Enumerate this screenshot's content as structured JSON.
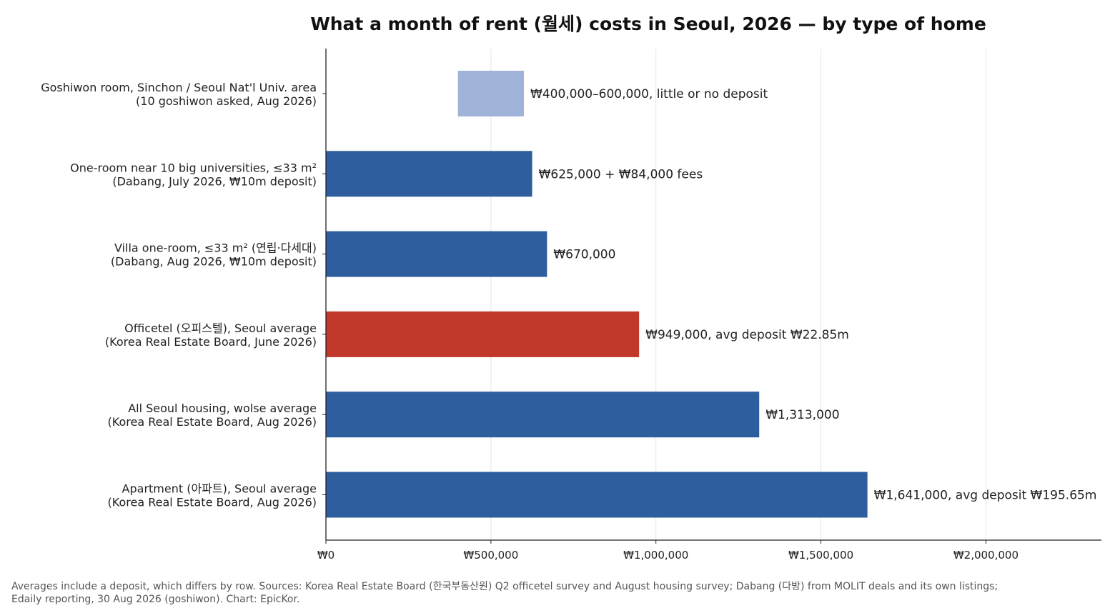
{
  "chart_data": {
    "type": "bar",
    "orientation": "horizontal",
    "title": "What a month of rent (월세) costs in Seoul, 2026 — by type of home",
    "xlabel": "",
    "ylabel": "",
    "xlim": [
      0,
      2350000
    ],
    "grid": "vertical",
    "x_ticks": [
      {
        "value": 0,
        "label": "₩0"
      },
      {
        "value": 500000,
        "label": "₩500,000"
      },
      {
        "value": 1000000,
        "label": "₩1,000,000"
      },
      {
        "value": 1500000,
        "label": "₩1,500,000"
      },
      {
        "value": 2000000,
        "label": "₩2,000,000"
      }
    ],
    "bars": [
      {
        "category_line1": "Goshiwon room, Sinchon / Seoul Nat'l Univ. area",
        "category_line2": "(10 goshiwon asked, Aug 2026)",
        "start": 400000,
        "end": 600000,
        "color": "#a0b3d8",
        "label": "₩400,000–600,000, little or no deposit"
      },
      {
        "category_line1": "One-room near 10 big universities, ≤33 m²",
        "category_line2": "(Dabang, July 2026, ₩10m deposit)",
        "start": 0,
        "end": 625000,
        "color": "#2f5e9e",
        "label": "₩625,000 + ₩84,000 fees"
      },
      {
        "category_line1": "Villa one-room, ≤33 m² (연립·다세대)",
        "category_line2": "(Dabang, Aug 2026, ₩10m deposit)",
        "start": 0,
        "end": 670000,
        "color": "#2f5e9e",
        "label": "₩670,000"
      },
      {
        "category_line1": "Officetel (오피스텔), Seoul average",
        "category_line2": "(Korea Real Estate Board, June 2026)",
        "start": 0,
        "end": 949000,
        "color": "#c0392b",
        "label": "₩949,000, avg deposit ₩22.85m"
      },
      {
        "category_line1": "All Seoul housing, wolse average",
        "category_line2": "(Korea Real Estate Board, Aug 2026)",
        "start": 0,
        "end": 1313000,
        "color": "#2f5e9e",
        "label": "₩1,313,000"
      },
      {
        "category_line1": "Apartment (아파트), Seoul average",
        "category_line2": "(Korea Real Estate Board, Aug 2026)",
        "start": 0,
        "end": 1641000,
        "color": "#2f5e9e",
        "label": "₩1,641,000, avg deposit ₩195.65m"
      }
    ],
    "footnote_line1": "Averages include a deposit, which differs by row. Sources: Korea Real Estate Board (한국부동산원) Q2 officetel survey and August housing survey; Dabang (다방) from MOLIT deals and its own listings;",
    "footnote_line2": "Edaily reporting, 30 Aug 2026 (goshiwon). Chart: EpicKor."
  }
}
